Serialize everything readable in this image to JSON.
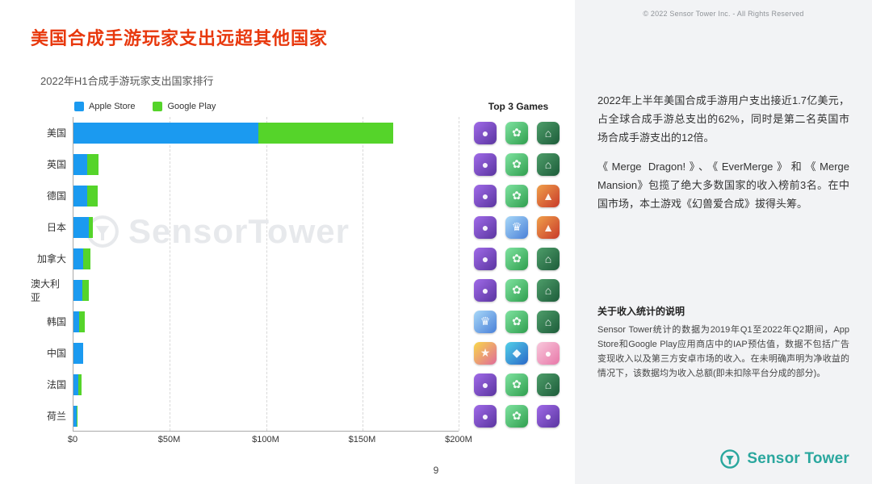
{
  "title": "美国合成手游玩家支出远超其他国家",
  "subtitle": "2022年H1合成手游玩家支出国家排行",
  "legend": {
    "apple": "Apple Store",
    "google": "Google Play"
  },
  "top3_header": "Top 3 Games",
  "watermark_text": "SensorTower",
  "page_number": "9",
  "colors": {
    "title_red": "#e8380d",
    "apple_blue": "#1b9af0",
    "google_green": "#55d42a",
    "brand_teal": "#2aa79e"
  },
  "chart_data": {
    "type": "bar",
    "stacked": true,
    "orientation": "horizontal",
    "title": "2022年H1合成手游玩家支出国家排行",
    "unit": "USD millions",
    "categories": [
      "美国",
      "英国",
      "德国",
      "日本",
      "加拿大",
      "澳大利亚",
      "韩国",
      "中国",
      "法国",
      "荷兰"
    ],
    "series": [
      {
        "name": "Apple Store",
        "color": "#1b9af0",
        "values": [
          96,
          7,
          7,
          8,
          5,
          4.5,
          3,
          5,
          2.5,
          1.5
        ]
      },
      {
        "name": "Google Play",
        "color": "#55d42a",
        "values": [
          70,
          6,
          5.5,
          2,
          4,
          3.5,
          3,
          0,
          1.5,
          0.8
        ]
      }
    ],
    "x_ticks": [
      "$0",
      "$50M",
      "$100M",
      "$150M",
      "$200M"
    ],
    "xlim": [
      0,
      200
    ],
    "grid": "vertical-dashed",
    "legend_position": "top"
  },
  "top3_games": {
    "rows": [
      [
        "merge-dragons",
        "evermerge",
        "merge-mansion"
      ],
      [
        "merge-dragons",
        "evermerge",
        "merge-mansion"
      ],
      [
        "merge-dragons",
        "evermerge",
        "banner-red"
      ],
      [
        "merge-dragons",
        "princess",
        "banner-red"
      ],
      [
        "merge-dragons",
        "evermerge",
        "merge-mansion"
      ],
      [
        "merge-dragons",
        "evermerge",
        "merge-mansion"
      ],
      [
        "princess",
        "evermerge",
        "merge-mansion"
      ],
      [
        "puzzle",
        "fish",
        "pig"
      ],
      [
        "merge-dragons",
        "evermerge",
        "merge-mansion"
      ],
      [
        "merge-dragons",
        "evermerge",
        "merge-dragons"
      ]
    ]
  },
  "icon_styles": {
    "merge-dragons": {
      "bg1": "#a06ae8",
      "bg2": "#5a35a0",
      "glyph": "●"
    },
    "evermerge": {
      "bg1": "#7fe3a0",
      "bg2": "#2f9e4e",
      "glyph": "✿"
    },
    "merge-mansion": {
      "bg1": "#4e9e6a",
      "bg2": "#1d5c3a",
      "glyph": "⌂"
    },
    "princess": {
      "bg1": "#a8d8f8",
      "bg2": "#4a80d8",
      "glyph": "♛"
    },
    "puzzle": {
      "bg1": "#f8d84a",
      "bg2": "#e06a9a",
      "glyph": "★"
    },
    "fish": {
      "bg1": "#52d0e8",
      "bg2": "#2a68c8",
      "glyph": "◆"
    },
    "pig": {
      "bg1": "#f8c8dc",
      "bg2": "#e878a8",
      "glyph": "●"
    },
    "banner-red": {
      "bg1": "#f0a04a",
      "bg2": "#c83a2a",
      "glyph": "▲"
    }
  },
  "panel": {
    "copyright": "© 2022 Sensor Tower Inc. - All Rights Reserved",
    "paragraphs": [
      "2022年上半年美国合成手游用户支出接近1.7亿美元，占全球合成手游总支出的62%，同时是第二名英国市场合成手游支出的12倍。",
      "《Merge Dragon!》、《EverMerge》和《Merge Mansion》包揽了绝大多数国家的收入榜前3名。在中国市场，本土游戏《幻兽爱合成》拔得头筹。"
    ],
    "notes_title": "关于收入统计的说明",
    "notes_body": "Sensor Tower统计的数据为2019年Q1至2022年Q2期间，App Store和Google Play应用商店中的IAP预估值，数据不包括广告变现收入以及第三方安卓市场的收入。在未明确声明为净收益的情况下，该数据均为收入总额(即未扣除平台分成的部分)。",
    "logo_text": "Sensor Tower"
  }
}
